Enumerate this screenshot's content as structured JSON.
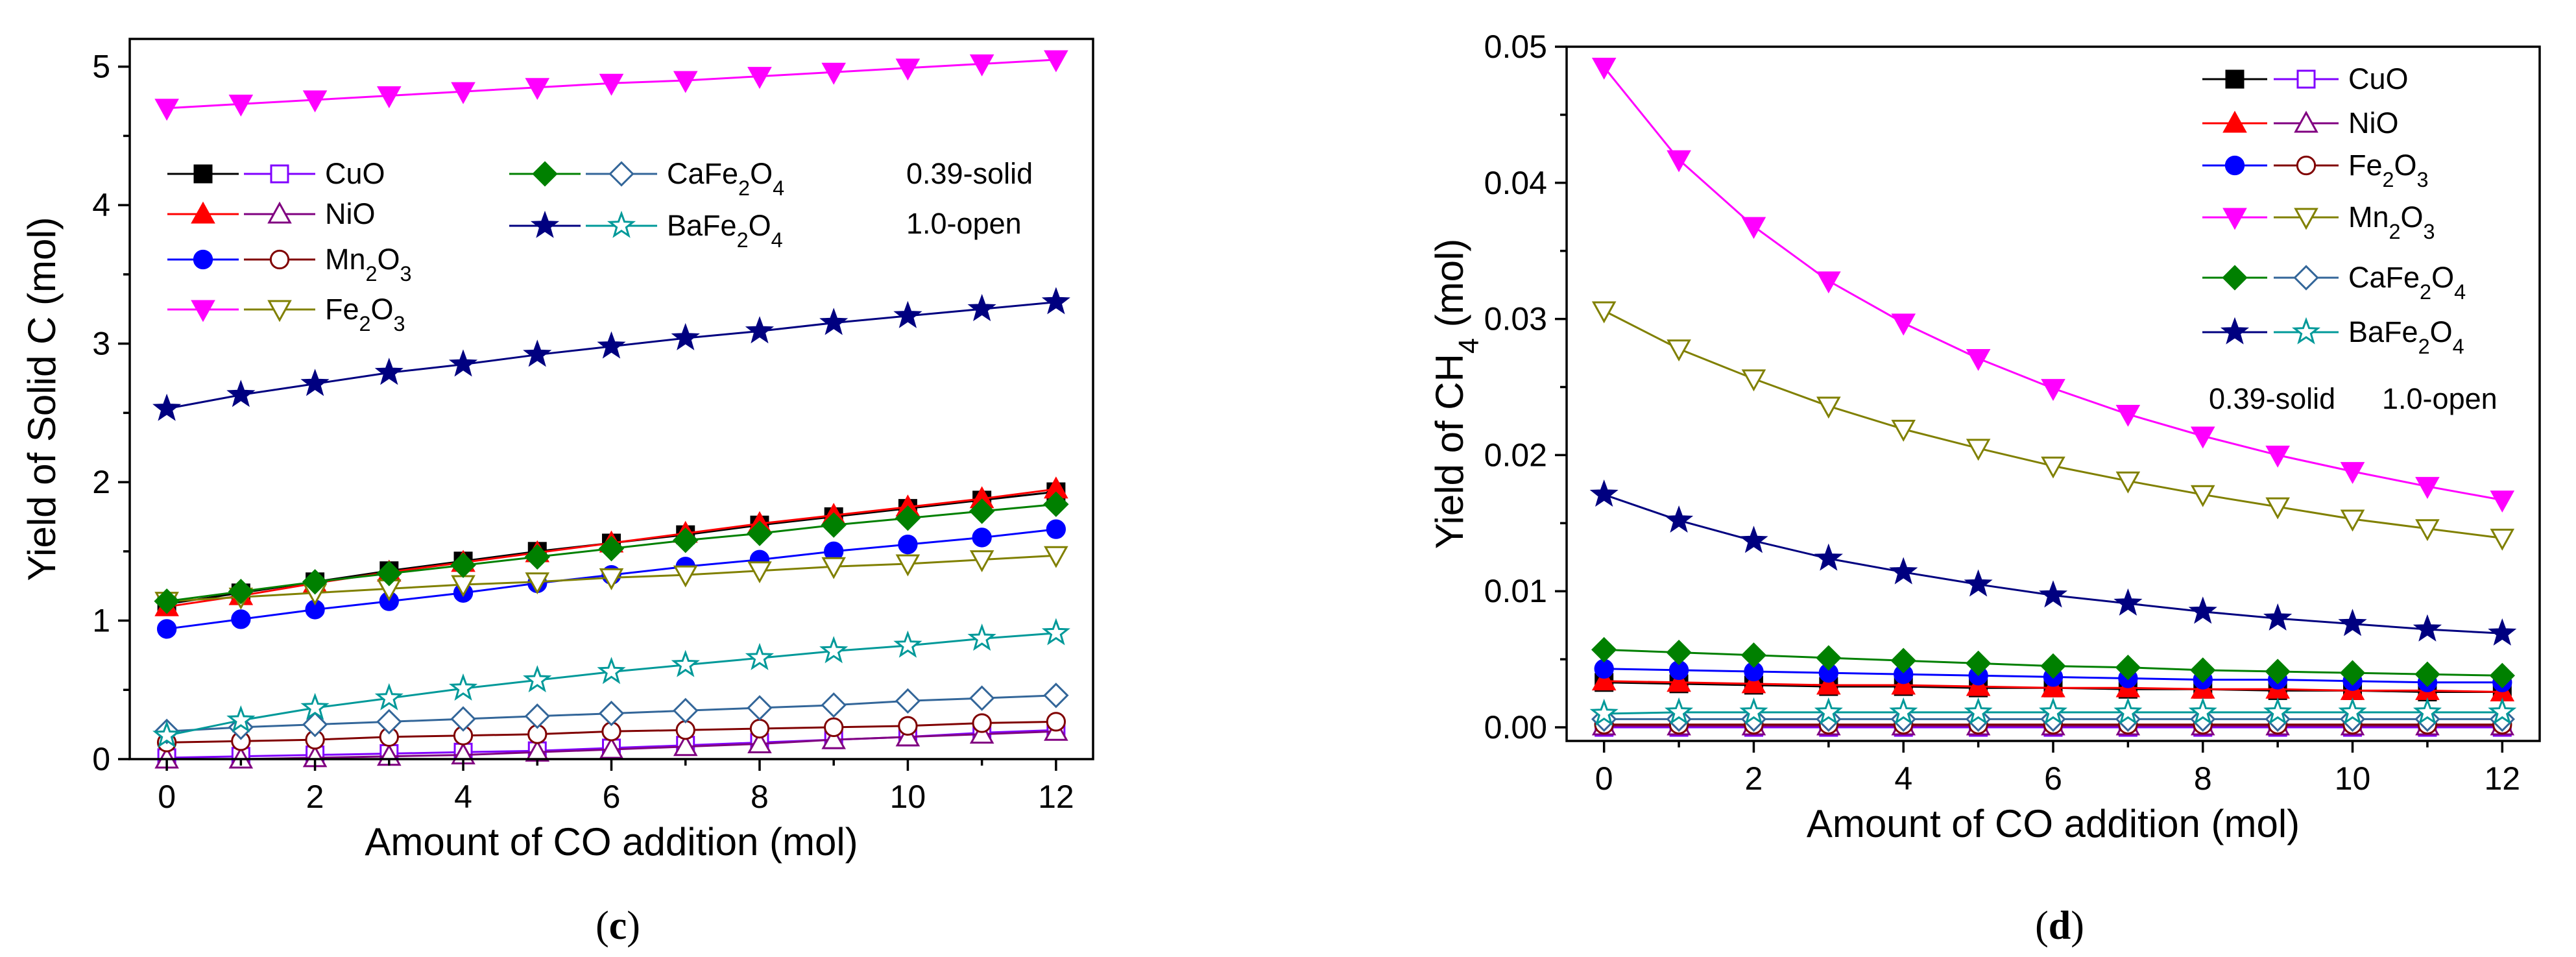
{
  "colors": {
    "black": "#000000",
    "red": "#ff0000",
    "blue": "#0000ff",
    "magenta": "#ff00ff",
    "green": "#008000",
    "navy": "#000080",
    "purple_open": "#8000ff",
    "purple_tri": "#800080",
    "darkred_open": "#800000",
    "olive_open": "#808000",
    "steelblue_open": "#336699",
    "teal_open": "#009999"
  },
  "chart_data": [
    {
      "type": "line",
      "panel_label": "(c)",
      "xlabel": "Amount of CO addition (mol)",
      "ylabel": "Yield of Solid C (mol)",
      "xlim": [
        -0.5,
        12.5
      ],
      "ylim": [
        0,
        5.2
      ],
      "xticks": [
        "0",
        "2",
        "4",
        "6",
        "8",
        "10",
        "12"
      ],
      "yticks": [
        "0",
        "1",
        "2",
        "3",
        "4",
        "5"
      ],
      "x": [
        0,
        1,
        2,
        3,
        4,
        5,
        6,
        7,
        8,
        9,
        10,
        11,
        12
      ],
      "annotations": [
        "0.39-solid",
        "1.0-open"
      ],
      "series": [
        {
          "name": "CuO",
          "condition": "0.39-solid",
          "marker": "square",
          "color": "#000000",
          "filled": true,
          "values": [
            1.12,
            1.2,
            1.28,
            1.36,
            1.43,
            1.5,
            1.56,
            1.62,
            1.69,
            1.75,
            1.81,
            1.87,
            1.93
          ]
        },
        {
          "name": "CuO",
          "condition": "1.0-open",
          "marker": "square",
          "color": "#8000ff",
          "filled": false,
          "values": [
            0.01,
            0.02,
            0.03,
            0.04,
            0.05,
            0.06,
            0.08,
            0.1,
            0.12,
            0.14,
            0.16,
            0.19,
            0.21
          ]
        },
        {
          "name": "NiO",
          "condition": "0.39-solid",
          "marker": "triangle-up",
          "color": "#ff0000",
          "filled": true,
          "values": [
            1.1,
            1.18,
            1.27,
            1.35,
            1.42,
            1.49,
            1.56,
            1.63,
            1.7,
            1.76,
            1.82,
            1.88,
            1.95
          ]
        },
        {
          "name": "NiO",
          "condition": "1.0-open",
          "marker": "triangle-up",
          "color": "#800080",
          "filled": false,
          "values": [
            0.0,
            0.0,
            0.01,
            0.02,
            0.03,
            0.05,
            0.07,
            0.09,
            0.11,
            0.14,
            0.16,
            0.18,
            0.2
          ]
        },
        {
          "name": "Mn2O3",
          "condition": "0.39-solid",
          "marker": "circle",
          "color": "#0000ff",
          "filled": true,
          "values": [
            0.94,
            1.01,
            1.08,
            1.14,
            1.2,
            1.27,
            1.33,
            1.39,
            1.44,
            1.5,
            1.55,
            1.6,
            1.66
          ]
        },
        {
          "name": "Mn2O3",
          "condition": "1.0-open",
          "marker": "circle",
          "color": "#800000",
          "filled": false,
          "values": [
            0.12,
            0.13,
            0.14,
            0.16,
            0.17,
            0.18,
            0.2,
            0.21,
            0.22,
            0.23,
            0.24,
            0.26,
            0.27
          ]
        },
        {
          "name": "Fe2O3",
          "condition": "0.39-solid",
          "marker": "triangle-down",
          "color": "#ff00ff",
          "filled": true,
          "values": [
            4.7,
            4.73,
            4.76,
            4.79,
            4.82,
            4.85,
            4.88,
            4.9,
            4.93,
            4.96,
            4.99,
            5.02,
            5.05
          ]
        },
        {
          "name": "Fe2O3",
          "condition": "1.0-open",
          "marker": "triangle-down",
          "color": "#808000",
          "filled": false,
          "values": [
            1.14,
            1.17,
            1.2,
            1.23,
            1.26,
            1.28,
            1.31,
            1.33,
            1.36,
            1.39,
            1.41,
            1.44,
            1.47
          ]
        },
        {
          "name": "CaFe2O4",
          "condition": "0.39-solid",
          "marker": "diamond",
          "color": "#008000",
          "filled": true,
          "values": [
            1.14,
            1.21,
            1.28,
            1.34,
            1.4,
            1.46,
            1.52,
            1.58,
            1.63,
            1.69,
            1.74,
            1.79,
            1.84
          ]
        },
        {
          "name": "CaFe2O4",
          "condition": "1.0-open",
          "marker": "diamond",
          "color": "#336699",
          "filled": false,
          "values": [
            0.2,
            0.23,
            0.25,
            0.27,
            0.29,
            0.31,
            0.33,
            0.35,
            0.37,
            0.39,
            0.42,
            0.44,
            0.46
          ]
        },
        {
          "name": "BaFe2O4",
          "condition": "0.39-solid",
          "marker": "star",
          "color": "#000080",
          "filled": true,
          "values": [
            2.53,
            2.63,
            2.71,
            2.79,
            2.85,
            2.92,
            2.98,
            3.04,
            3.09,
            3.15,
            3.2,
            3.25,
            3.3
          ]
        },
        {
          "name": "BaFe2O4",
          "condition": "1.0-open",
          "marker": "star",
          "color": "#009999",
          "filled": false,
          "values": [
            0.17,
            0.28,
            0.37,
            0.44,
            0.51,
            0.57,
            0.63,
            0.68,
            0.73,
            0.78,
            0.82,
            0.87,
            0.91
          ]
        }
      ]
    },
    {
      "type": "line",
      "panel_label": "(d)",
      "xlabel": "Amount of CO addition (mol)",
      "ylabel": "Yield of CH4 (mol)",
      "xlim": [
        -0.5,
        12.5
      ],
      "ylim": [
        -0.001,
        0.05
      ],
      "xticks": [
        "0",
        "2",
        "4",
        "6",
        "8",
        "10",
        "12"
      ],
      "yticks": [
        "0.00",
        "0.01",
        "0.02",
        "0.03",
        "0.04",
        "0.05"
      ],
      "x": [
        0,
        1,
        2,
        3,
        4,
        5,
        6,
        7,
        8,
        9,
        10,
        11,
        12
      ],
      "annotations": [
        "0.39-solid",
        "1.0-open"
      ],
      "series": [
        {
          "name": "CuO",
          "condition": "0.39-solid",
          "marker": "square",
          "color": "#000000",
          "filled": true,
          "values": [
            0.0033,
            0.0032,
            0.0031,
            0.003,
            0.003,
            0.0029,
            0.0029,
            0.0028,
            0.0028,
            0.0027,
            0.0027,
            0.0026,
            0.0026
          ]
        },
        {
          "name": "CuO",
          "condition": "1.0-open",
          "marker": "square",
          "color": "#8000ff",
          "filled": false,
          "values": [
            0.0,
            0.0,
            0.0,
            0.0,
            0.0,
            0.0,
            0.0,
            0.0,
            0.0,
            0.0,
            0.0,
            0.0,
            0.0
          ]
        },
        {
          "name": "NiO",
          "condition": "0.39-solid",
          "marker": "triangle-up",
          "color": "#ff0000",
          "filled": true,
          "values": [
            0.0034,
            0.0033,
            0.0032,
            0.0031,
            0.0031,
            0.003,
            0.0029,
            0.0029,
            0.0028,
            0.0028,
            0.0027,
            0.0027,
            0.0026
          ]
        },
        {
          "name": "NiO",
          "condition": "1.0-open",
          "marker": "triangle-up",
          "color": "#800080",
          "filled": false,
          "values": [
            0.0001,
            0.0001,
            0.0001,
            0.0001,
            0.0001,
            0.0001,
            0.0001,
            0.0001,
            0.0001,
            0.0001,
            0.0001,
            0.0001,
            0.0001
          ]
        },
        {
          "name": "Fe2O3",
          "condition": "0.39-solid",
          "marker": "circle",
          "color": "#0000ff",
          "filled": true,
          "values": [
            0.0043,
            0.0042,
            0.0041,
            0.004,
            0.0039,
            0.0038,
            0.0037,
            0.0036,
            0.0035,
            0.0035,
            0.0034,
            0.0033,
            0.0033
          ]
        },
        {
          "name": "Fe2O3",
          "condition": "1.0-open",
          "marker": "circle",
          "color": "#800000",
          "filled": false,
          "values": [
            0.0002,
            0.0002,
            0.0002,
            0.0002,
            0.0002,
            0.0002,
            0.0002,
            0.0002,
            0.0002,
            0.0002,
            0.0002,
            0.0002,
            0.0002
          ]
        },
        {
          "name": "Mn2O3",
          "condition": "0.39-solid",
          "marker": "triangle-down",
          "color": "#ff00ff",
          "filled": true,
          "values": [
            0.0485,
            0.0417,
            0.0368,
            0.0328,
            0.0297,
            0.0271,
            0.0249,
            0.023,
            0.0214,
            0.02,
            0.0188,
            0.0177,
            0.0167
          ]
        },
        {
          "name": "Mn2O3",
          "condition": "1.0-open",
          "marker": "triangle-down",
          "color": "#808000",
          "filled": false,
          "values": [
            0.0306,
            0.0278,
            0.0256,
            0.0236,
            0.0219,
            0.0205,
            0.0192,
            0.0181,
            0.0171,
            0.0162,
            0.0153,
            0.0146,
            0.0139
          ]
        },
        {
          "name": "CaFe2O4",
          "condition": "0.39-solid",
          "marker": "diamond",
          "color": "#008000",
          "filled": true,
          "values": [
            0.0057,
            0.0055,
            0.0053,
            0.0051,
            0.0049,
            0.0047,
            0.0045,
            0.0044,
            0.0042,
            0.0041,
            0.004,
            0.0039,
            0.0038
          ]
        },
        {
          "name": "CaFe2O4",
          "condition": "1.0-open",
          "marker": "diamond",
          "color": "#336699",
          "filled": false,
          "values": [
            0.0006,
            0.0006,
            0.0006,
            0.0006,
            0.0006,
            0.0006,
            0.0006,
            0.0006,
            0.0006,
            0.0006,
            0.0006,
            0.0006,
            0.0006
          ]
        },
        {
          "name": "BaFe2O4",
          "condition": "0.39-solid",
          "marker": "star",
          "color": "#000080",
          "filled": true,
          "values": [
            0.0171,
            0.0152,
            0.0137,
            0.0124,
            0.0114,
            0.0105,
            0.0097,
            0.0091,
            0.0085,
            0.008,
            0.0076,
            0.0072,
            0.0069
          ]
        },
        {
          "name": "BaFe2O4",
          "condition": "1.0-open",
          "marker": "star",
          "color": "#009999",
          "filled": false,
          "values": [
            0.001,
            0.0011,
            0.0011,
            0.0011,
            0.0011,
            0.0011,
            0.0011,
            0.0011,
            0.0011,
            0.0011,
            0.0011,
            0.0011,
            0.0011
          ]
        }
      ]
    }
  ]
}
